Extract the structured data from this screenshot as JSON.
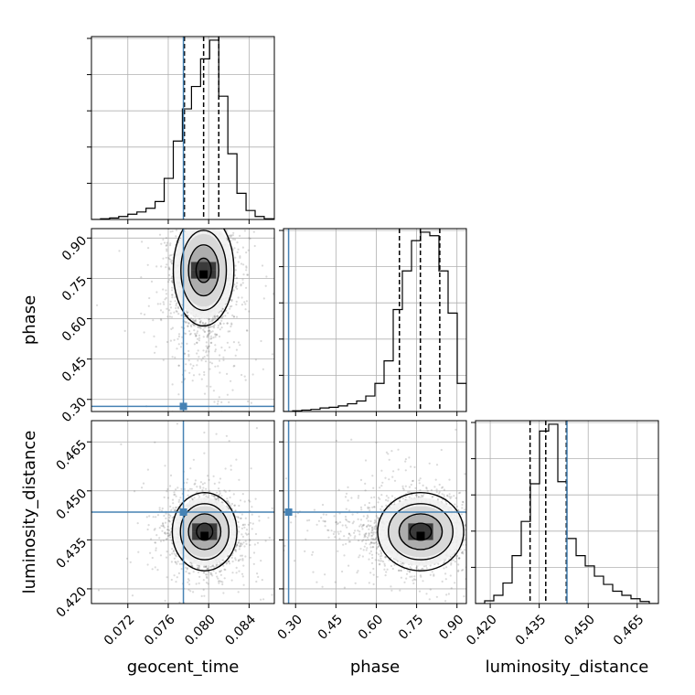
{
  "chart_data": {
    "type": "corner",
    "parameters": [
      "geocent_time",
      "phase",
      "luminosity_distance"
    ],
    "labels": {
      "geocent_time": "geocent_time",
      "phase": "phase",
      "luminosity_distance": "luminosity_distance"
    },
    "ranges": {
      "geocent_time": [
        0.0684,
        0.0865
      ],
      "phase": [
        0.255,
        0.935
      ],
      "luminosity_distance": [
        0.4155,
        0.4715
      ]
    },
    "ticks": {
      "geocent_time": [
        0.072,
        0.076,
        0.08,
        0.084
      ],
      "phase": [
        0.3,
        0.45,
        0.6,
        0.75,
        0.9
      ],
      "luminosity_distance": [
        0.42,
        0.435,
        0.45,
        0.465
      ]
    },
    "tick_labels": {
      "geocent_time": [
        "0.072",
        "0.076",
        "0.080",
        "0.084"
      ],
      "phase": [
        "0.30",
        "0.45",
        "0.60",
        "0.75",
        "0.90"
      ],
      "luminosity_distance": [
        "0.420",
        "0.435",
        "0.450",
        "0.465"
      ]
    },
    "truths": {
      "geocent_time": 0.0775,
      "phase": 0.274,
      "luminosity_distance": 0.4435
    },
    "quantiles": {
      "geocent_time": [
        0.0776,
        0.0795,
        0.081
      ],
      "phase": [
        0.686,
        0.764,
        0.836
      ],
      "luminosity_distance": [
        0.4322,
        0.437,
        0.4433
      ]
    },
    "histograms": {
      "geocent_time": {
        "edges": [
          0.0684,
          0.0693,
          0.0702,
          0.0711,
          0.072,
          0.0729,
          0.0738,
          0.0747,
          0.0756,
          0.0765,
          0.0774,
          0.0783,
          0.0792,
          0.0801,
          0.081,
          0.0819,
          0.0828,
          0.0837,
          0.0846,
          0.0855,
          0.0865
        ],
        "counts": [
          0,
          1,
          2,
          4,
          7,
          10,
          15,
          24,
          55,
          105,
          148,
          178,
          215,
          240,
          165,
          88,
          35,
          12,
          4,
          1
        ]
      },
      "phase": {
        "edges": [
          0.255,
          0.289,
          0.323,
          0.357,
          0.391,
          0.425,
          0.459,
          0.493,
          0.527,
          0.561,
          0.595,
          0.629,
          0.663,
          0.697,
          0.731,
          0.765,
          0.799,
          0.833,
          0.867,
          0.901,
          0.935
        ],
        "counts": [
          0,
          1,
          2,
          3,
          5,
          6,
          8,
          11,
          15,
          22,
          40,
          72,
          145,
          200,
          243,
          255,
          250,
          200,
          140,
          40
        ]
      },
      "luminosity_distance": {
        "edges": [
          0.4155,
          0.4183,
          0.4211,
          0.4239,
          0.4267,
          0.4295,
          0.4323,
          0.4351,
          0.4379,
          0.4407,
          0.4435,
          0.4463,
          0.4491,
          0.4519,
          0.4547,
          0.4575,
          0.4603,
          0.4631,
          0.4659,
          0.4687,
          0.4715
        ],
        "counts": [
          0,
          4,
          12,
          30,
          70,
          120,
          175,
          252,
          262,
          178,
          95,
          70,
          55,
          40,
          28,
          18,
          12,
          7,
          3,
          0
        ]
      }
    },
    "joint": {
      "geocent_time|phase": {
        "mean": [
          0.0795,
          0.78
        ],
        "std": [
          0.0015,
          0.09
        ],
        "sigma_levels": [
          0.5,
          1.0,
          1.5,
          2.0
        ],
        "n_points": 2600
      },
      "geocent_time|luminosity_distance": {
        "mean": [
          0.0796,
          0.4375
        ],
        "std": [
          0.0016,
          0.0052
        ],
        "sigma_levels": [
          0.5,
          1.0,
          1.5,
          2.0
        ],
        "n_points": 2600
      },
      "phase|luminosity_distance": {
        "mean": [
          0.765,
          0.4375
        ],
        "std": [
          0.08,
          0.0052
        ],
        "sigma_levels": [
          0.5,
          1.0,
          1.5,
          2.0
        ],
        "n_points": 2600
      }
    },
    "grid": true,
    "colors": {
      "truth": "#4682b4",
      "histogram": "#000000",
      "contour": "#000000",
      "points": "#555555",
      "grid": "#b0b0b0",
      "frame": "#000000"
    }
  }
}
